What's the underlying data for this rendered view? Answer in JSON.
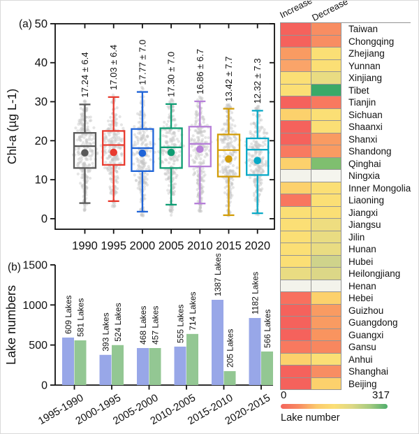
{
  "chart_data": [
    {
      "type": "box",
      "panel_label": "(a)",
      "ylabel": "Chl-a (µg L-1)",
      "ylim": [
        0,
        50
      ],
      "yticks": [
        0,
        10,
        20,
        30,
        40,
        50
      ],
      "categories": [
        "1990",
        "1995",
        "2000",
        "2005",
        "2010",
        "2015",
        "2020"
      ],
      "annotations": [
        "17.24 ± 6.4",
        "17.03 ± 6.4",
        "17.77 ± 7.0",
        "17.30 ± 7.0",
        "16.86 ± 6.7",
        "13.42 ± 7.7",
        "12.32 ± 7.3"
      ],
      "annotation_color": "#2e3cc8",
      "box_colors": [
        "#595959",
        "#e83b2f",
        "#1f64d8",
        "#0d9c72",
        "#b67fd8",
        "#d29c07",
        "#08a9c6"
      ],
      "stats": [
        {
          "low": 4.0,
          "q1": 13.0,
          "median": 18.6,
          "q3": 22.0,
          "high": 29.3,
          "mean": 16.9
        },
        {
          "low": 4.5,
          "q1": 13.8,
          "median": 18.9,
          "q3": 22.5,
          "high": 31.2,
          "mean": 17.0
        },
        {
          "low": 1.8,
          "q1": 12.2,
          "median": 18.1,
          "q3": 23.0,
          "high": 32.5,
          "mean": 16.8
        },
        {
          "low": 3.6,
          "q1": 13.0,
          "median": 18.3,
          "q3": 23.2,
          "high": 29.4,
          "mean": 17.0
        },
        {
          "low": 3.9,
          "q1": 13.4,
          "median": 19.2,
          "q3": 23.6,
          "high": 30.1,
          "mean": 17.8
        },
        {
          "low": 0.9,
          "q1": 10.8,
          "median": 17.6,
          "q3": 21.6,
          "high": 28.2,
          "mean": 15.3
        },
        {
          "low": 1.4,
          "q1": 11.2,
          "median": 17.7,
          "q3": 20.6,
          "high": 27.7,
          "mean": 14.9
        }
      ],
      "scatter_color": "#c6c6c6"
    },
    {
      "type": "bar",
      "panel_label": "(b)",
      "ylabel": "Lake numbers",
      "ylim": [
        0,
        1500
      ],
      "yticks": [
        0,
        500,
        1000,
        1500
      ],
      "categories": [
        "1995-1990",
        "2000-1995",
        "2005-2000",
        "2010-2005",
        "2015-2010",
        "2020-2015"
      ],
      "series": [
        {
          "name": "blue-lakes",
          "color": "#98a7e8",
          "label_color": "#3c55d0",
          "values": [
            609,
            393,
            468,
            555,
            1387,
            1182
          ],
          "labels": [
            "609 Lakes",
            "393 Lakes",
            "468 Lakes",
            "555 Lakes",
            "1387 Lakes",
            "1182 Lakes"
          ],
          "plotted": [
            593,
            377,
            462,
            480,
            1064,
            837
          ]
        },
        {
          "name": "green-lakes",
          "color": "#93c793",
          "label_color": "#2f8f3f",
          "values": [
            581,
            524,
            457,
            714,
            205,
            566
          ],
          "labels": [
            "581 Lakes",
            "524 Lakes",
            "457 Lakes",
            "714 Lakes",
            "205 Lakes",
            "566 Lakes"
          ],
          "plotted": [
            558,
            499,
            462,
            638,
            174,
            419
          ]
        }
      ]
    },
    {
      "type": "heatmap",
      "columns": [
        "Increase",
        "Decrease"
      ],
      "rows": [
        "Taiwan",
        "Chongqing",
        "Zhejiang",
        "Yunnan",
        "Xinjiang",
        "Tibet",
        "Tianjin",
        "Sichuan",
        "Shaanxi",
        "Shanxi",
        "Shandong",
        "Qinghai",
        "Ningxia",
        "Inner Mongolia",
        "Liaoning",
        "Jiangxi",
        "Jiangsu",
        "Jilin",
        "Hunan",
        "Hubei",
        "Heilongjiang",
        "Henan",
        "Hebei",
        "Guizhou",
        "Guangdong",
        "Guangxi",
        "Gansu",
        "Anhui",
        "Shanghai",
        "Beijing"
      ],
      "cell_colors": [
        [
          "#f5625c",
          "#f88d62"
        ],
        [
          "#f5625c",
          "#f88d62"
        ],
        [
          "#f99b62",
          "#fbdf75"
        ],
        [
          "#faa469",
          "#fbdf75"
        ],
        [
          "#fbdf75",
          "#e9dc82"
        ],
        [
          "#fbdf75",
          "#3ba968"
        ],
        [
          "#f5625c",
          "#f8795f"
        ],
        [
          "#fcd16c",
          "#fbdf75"
        ],
        [
          "#f5625c",
          "#fbdf75"
        ],
        [
          "#f5625c",
          "#f99b62"
        ],
        [
          "#f87a60",
          "#f99b62"
        ],
        [
          "#fcd16c",
          "#7fbf6f"
        ],
        [
          "#f3f3eb",
          "#f5f5ee"
        ],
        [
          "#fcd16c",
          "#fbdf75"
        ],
        [
          "#f8765f",
          "#fbdf75"
        ],
        [
          "#fbdf75",
          "#fbdf75"
        ],
        [
          "#fbdf75",
          "#eedd80"
        ],
        [
          "#fbdf75",
          "#e9dc82"
        ],
        [
          "#fbdf75",
          "#e9dc82"
        ],
        [
          "#fbdf75",
          "#cfd38b"
        ],
        [
          "#e9dc82",
          "#dcd787"
        ],
        [
          "#f3f3eb",
          "#f3f3eb"
        ],
        [
          "#f8705e",
          "#fcd16c"
        ],
        [
          "#f5625c",
          "#f99b62"
        ],
        [
          "#f5625c",
          "#f99b62"
        ],
        [
          "#f5625c",
          "#f9945f"
        ],
        [
          "#f8795f",
          "#f8875f"
        ],
        [
          "#fcd16c",
          "#fbdf75"
        ],
        [
          "#f5625c",
          "#f88d62"
        ],
        [
          "#f5625c",
          "#fcd16c"
        ]
      ],
      "colorbar": {
        "min_label": "0",
        "max_label": "317",
        "title": "Lake number",
        "gradient": [
          "#f4655c",
          "#f88a62",
          "#fbc96c",
          "#fbdf75",
          "#ddd885",
          "#a6cb80",
          "#4fad6c"
        ]
      }
    }
  ]
}
